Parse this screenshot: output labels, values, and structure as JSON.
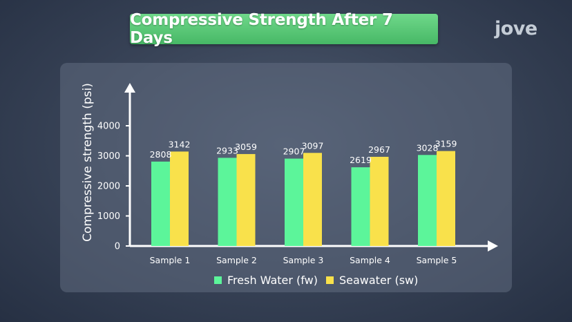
{
  "header": {
    "title": "Compressive Strength After 7 Days",
    "logo_text": "jove"
  },
  "colors": {
    "fresh": "#5cf59a",
    "sea": "#f9e14b",
    "title_bg": "#5cc878"
  },
  "chart_data": {
    "type": "bar",
    "title": "Compressive Strength After 7 Days",
    "xlabel": "",
    "ylabel": "Compressive strength (psi)",
    "ylim": [
      0,
      4000
    ],
    "yticks": [
      0,
      1000,
      2000,
      3000,
      4000
    ],
    "categories": [
      "Sample 1",
      "Sample 2",
      "Sample 3",
      "Sample 4",
      "Sample 5"
    ],
    "series": [
      {
        "name": "Fresh Water (fw)",
        "values": [
          2808,
          2933,
          2907,
          2619,
          3028
        ]
      },
      {
        "name": "Seawater (sw)",
        "values": [
          3142,
          3059,
          3097,
          2967,
          3159
        ]
      }
    ],
    "grid": false,
    "legend_position": "bottom"
  }
}
